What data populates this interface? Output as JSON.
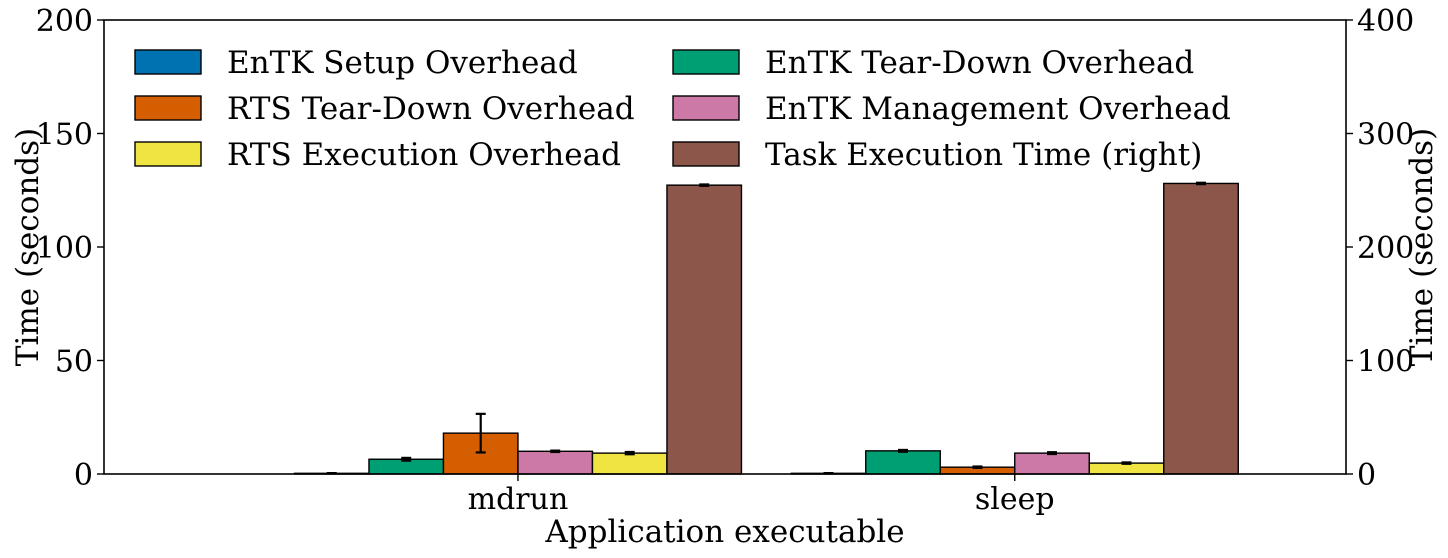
{
  "chart_data": {
    "type": "bar",
    "categories": [
      "mdrun",
      "sleep"
    ],
    "xlabel": "Application executable",
    "ylabel": "Time (seconds)",
    "ylabel_right": "Time (seconds)",
    "ylim": [
      0,
      200
    ],
    "ylim_right": [
      0,
      400
    ],
    "yticks": [
      0,
      50,
      100,
      150,
      200
    ],
    "yticks_right": [
      0,
      100,
      200,
      300,
      400
    ],
    "grid": false,
    "legend_position": "top, two columns",
    "series": [
      {
        "name": "EnTK Setup Overhead",
        "color": "#0072b2",
        "axis": "left",
        "values": [
          0.3,
          0.3
        ],
        "errors": [
          0.1,
          0.1
        ]
      },
      {
        "name": "EnTK Tear-Down Overhead",
        "color": "#009e73",
        "axis": "left",
        "values": [
          6.5,
          10.2
        ],
        "errors": [
          0.6,
          0.4
        ]
      },
      {
        "name": "RTS Tear-Down Overhead",
        "color": "#d55e00",
        "axis": "left",
        "values": [
          18.0,
          3.0
        ],
        "errors": [
          8.5,
          0.3
        ]
      },
      {
        "name": "EnTK Management Overhead",
        "color": "#cc79a7",
        "axis": "left",
        "values": [
          10.0,
          9.2
        ],
        "errors": [
          0.3,
          0.4
        ]
      },
      {
        "name": "RTS Execution Overhead",
        "color": "#f0e442",
        "axis": "left",
        "values": [
          9.2,
          4.8
        ],
        "errors": [
          0.5,
          0.3
        ]
      },
      {
        "name": "Task Execution Time (right)",
        "color": "#8c564b",
        "axis": "right",
        "values": [
          254.5,
          256.0
        ],
        "errors": [
          0.6,
          0.6
        ]
      }
    ]
  }
}
